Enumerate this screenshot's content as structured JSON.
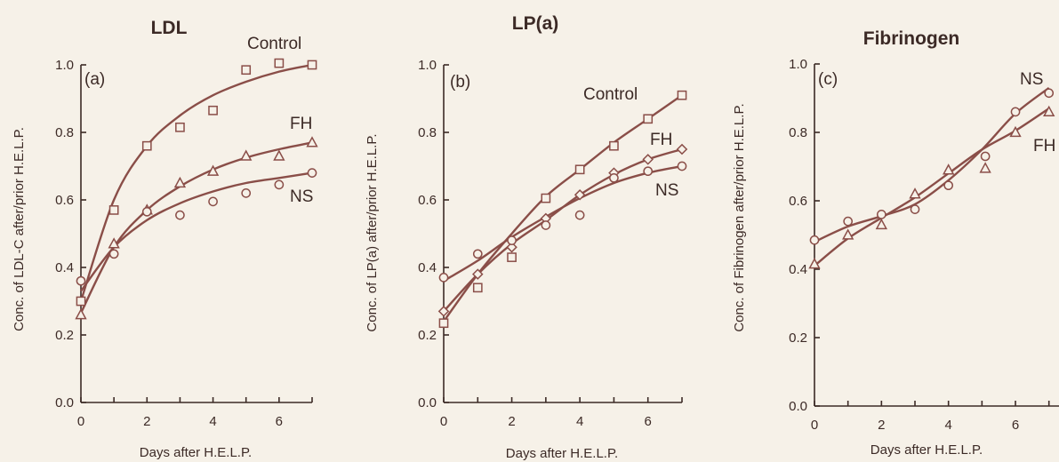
{
  "chart_data": [
    {
      "type": "line",
      "panel": "(a)",
      "title": "LDL",
      "xlabel": "Days after H.E.L.P.",
      "ylabel": "Conc. of LDL-C after/prior H.E.L.P.",
      "xlim": [
        0,
        7
      ],
      "ylim": [
        0.0,
        1.0
      ],
      "xticks": [
        "0",
        "2",
        "4",
        "6"
      ],
      "yticks": [
        "0.0",
        "0.2",
        "0.4",
        "0.6",
        "0.8",
        "1.0"
      ],
      "grid": false,
      "series": [
        {
          "name": "Control",
          "marker": "square",
          "points": [
            [
              0,
              0.3
            ],
            [
              1,
              0.57
            ],
            [
              2,
              0.76
            ],
            [
              3,
              0.815
            ],
            [
              4,
              0.865
            ],
            [
              5,
              0.985
            ],
            [
              6,
              1.005
            ],
            [
              7,
              1.0
            ]
          ],
          "curve": [
            [
              0,
              0.3
            ],
            [
              1,
              0.6
            ],
            [
              2,
              0.76
            ],
            [
              3,
              0.85
            ],
            [
              4,
              0.91
            ],
            [
              5,
              0.95
            ],
            [
              6,
              0.98
            ],
            [
              7,
              1.0
            ]
          ]
        },
        {
          "name": "FH",
          "marker": "triangle",
          "points": [
            [
              0,
              0.26
            ],
            [
              1,
              0.47
            ],
            [
              2,
              0.57
            ],
            [
              3,
              0.65
            ],
            [
              4,
              0.685
            ],
            [
              5,
              0.73
            ],
            [
              6,
              0.73
            ],
            [
              7,
              0.77
            ]
          ],
          "curve": [
            [
              0,
              0.265
            ],
            [
              1,
              0.46
            ],
            [
              2,
              0.57
            ],
            [
              3,
              0.64
            ],
            [
              4,
              0.69
            ],
            [
              5,
              0.725
            ],
            [
              6,
              0.75
            ],
            [
              7,
              0.77
            ]
          ]
        },
        {
          "name": "NS",
          "marker": "circle",
          "points": [
            [
              0,
              0.36
            ],
            [
              1,
              0.44
            ],
            [
              2,
              0.565
            ],
            [
              3,
              0.555
            ],
            [
              4,
              0.595
            ],
            [
              5,
              0.62
            ],
            [
              6,
              0.645
            ],
            [
              7,
              0.68
            ]
          ],
          "curve": [
            [
              0,
              0.33
            ],
            [
              1,
              0.46
            ],
            [
              2,
              0.54
            ],
            [
              3,
              0.59
            ],
            [
              4,
              0.625
            ],
            [
              5,
              0.65
            ],
            [
              6,
              0.665
            ],
            [
              7,
              0.68
            ]
          ]
        }
      ]
    },
    {
      "type": "line",
      "panel": "(b)",
      "title": "LP(a)",
      "xlabel": "Days after H.E.L.P.",
      "ylabel": "Conc. of LP(a) after/prior H.E.L.P.",
      "xlim": [
        0,
        7
      ],
      "ylim": [
        0.0,
        1.0
      ],
      "xticks": [
        "0",
        "2",
        "4",
        "6"
      ],
      "yticks": [
        "0.0",
        "0.2",
        "0.4",
        "0.6",
        "0.8",
        "1.0"
      ],
      "grid": false,
      "series": [
        {
          "name": "Control",
          "marker": "square",
          "points": [
            [
              0,
              0.235
            ],
            [
              1,
              0.34
            ],
            [
              2,
              0.43
            ],
            [
              3,
              0.605
            ],
            [
              4,
              0.69
            ],
            [
              5,
              0.76
            ],
            [
              6,
              0.84
            ],
            [
              7,
              0.91
            ]
          ],
          "curve": [
            [
              0,
              0.24
            ],
            [
              1,
              0.38
            ],
            [
              2,
              0.5
            ],
            [
              3,
              0.61
            ],
            [
              4,
              0.69
            ],
            [
              5,
              0.77
            ],
            [
              6,
              0.84
            ],
            [
              7,
              0.91
            ]
          ]
        },
        {
          "name": "FH",
          "marker": "diamond",
          "points": [
            [
              0,
              0.27
            ],
            [
              1,
              0.38
            ],
            [
              2,
              0.46
            ],
            [
              3,
              0.545
            ],
            [
              4,
              0.615
            ],
            [
              5,
              0.68
            ],
            [
              6,
              0.72
            ],
            [
              7,
              0.75
            ]
          ],
          "curve": [
            [
              0,
              0.27
            ],
            [
              1,
              0.38
            ],
            [
              2,
              0.47
            ],
            [
              3,
              0.54
            ],
            [
              4,
              0.615
            ],
            [
              5,
              0.675
            ],
            [
              6,
              0.72
            ],
            [
              7,
              0.75
            ]
          ]
        },
        {
          "name": "NS",
          "marker": "circle",
          "points": [
            [
              0,
              0.37
            ],
            [
              1,
              0.44
            ],
            [
              2,
              0.48
            ],
            [
              3,
              0.525
            ],
            [
              4,
              0.555
            ],
            [
              5,
              0.665
            ],
            [
              6,
              0.685
            ],
            [
              7,
              0.7
            ]
          ],
          "curve": [
            [
              0,
              0.36
            ],
            [
              1,
              0.42
            ],
            [
              2,
              0.49
            ],
            [
              3,
              0.55
            ],
            [
              4,
              0.605
            ],
            [
              5,
              0.65
            ],
            [
              6,
              0.68
            ],
            [
              7,
              0.7
            ]
          ]
        }
      ]
    },
    {
      "type": "line",
      "panel": "(c)",
      "title": "Fibrinogen",
      "xlabel": "Days after H.E.L.P.",
      "ylabel": "Conc. of Fibrinogen after/prior H.E.L.P.",
      "xlim": [
        0,
        7
      ],
      "ylim": [
        0.0,
        1.0
      ],
      "xticks": [
        "0",
        "2",
        "4",
        "6"
      ],
      "yticks": [
        "0.0",
        "0.2",
        "0.4",
        "0.6",
        "0.8",
        "1.0"
      ],
      "grid": false,
      "series": [
        {
          "name": "NS",
          "marker": "circle",
          "points": [
            [
              0,
              0.485
            ],
            [
              1,
              0.54
            ],
            [
              2,
              0.56
            ],
            [
              3,
              0.575
            ],
            [
              4,
              0.645
            ],
            [
              5.1,
              0.73
            ],
            [
              6,
              0.86
            ],
            [
              7,
              0.915
            ]
          ],
          "curve": [
            [
              0,
              0.48
            ],
            [
              1,
              0.525
            ],
            [
              2,
              0.555
            ],
            [
              3,
              0.59
            ],
            [
              4,
              0.66
            ],
            [
              5,
              0.75
            ],
            [
              6,
              0.855
            ],
            [
              7,
              0.93
            ]
          ]
        },
        {
          "name": "FH",
          "marker": "triangle",
          "points": [
            [
              0,
              0.415
            ],
            [
              1,
              0.5
            ],
            [
              2,
              0.53
            ],
            [
              3,
              0.62
            ],
            [
              4,
              0.69
            ],
            [
              5.1,
              0.695
            ],
            [
              6,
              0.8
            ],
            [
              7,
              0.86
            ]
          ],
          "curve": [
            [
              0,
              0.41
            ],
            [
              1,
              0.49
            ],
            [
              2,
              0.55
            ],
            [
              3,
              0.61
            ],
            [
              4,
              0.68
            ],
            [
              5,
              0.75
            ],
            [
              6,
              0.805
            ],
            [
              7,
              0.87
            ]
          ]
        }
      ]
    }
  ]
}
